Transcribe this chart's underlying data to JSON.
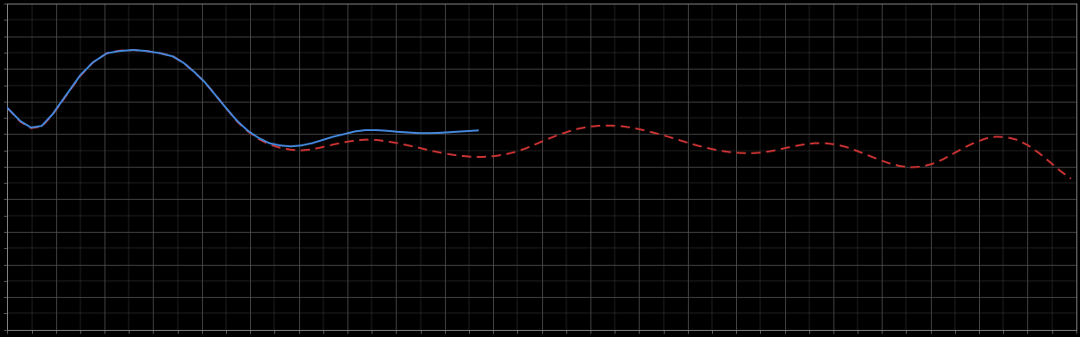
{
  "background_color": "#000000",
  "plot_bg_color": "#000000",
  "grid_color": "#505050",
  "blue_line_color": "#4488dd",
  "red_line_color": "#cc3333",
  "xlim": [
    0,
    1
  ],
  "ylim": [
    0,
    1
  ],
  "figsize": [
    12.09,
    3.78
  ],
  "dpi": 100,
  "blue_x": [
    0.0,
    0.012,
    0.022,
    0.032,
    0.042,
    0.055,
    0.068,
    0.08,
    0.093,
    0.105,
    0.118,
    0.13,
    0.143,
    0.155,
    0.165,
    0.175,
    0.185,
    0.195,
    0.205,
    0.215,
    0.225,
    0.235,
    0.245,
    0.255,
    0.265,
    0.275,
    0.285,
    0.295,
    0.305,
    0.315,
    0.325,
    0.335,
    0.345,
    0.355,
    0.365,
    0.375,
    0.385,
    0.395,
    0.405,
    0.415,
    0.425,
    0.435,
    0.44
  ],
  "blue_y": [
    0.68,
    0.64,
    0.62,
    0.625,
    0.66,
    0.72,
    0.78,
    0.82,
    0.848,
    0.855,
    0.858,
    0.855,
    0.848,
    0.838,
    0.818,
    0.79,
    0.758,
    0.718,
    0.678,
    0.64,
    0.61,
    0.588,
    0.572,
    0.565,
    0.562,
    0.565,
    0.572,
    0.582,
    0.592,
    0.6,
    0.608,
    0.612,
    0.612,
    0.61,
    0.607,
    0.605,
    0.603,
    0.603,
    0.604,
    0.606,
    0.608,
    0.61,
    0.611
  ],
  "red_x": [
    0.0,
    0.012,
    0.022,
    0.032,
    0.042,
    0.055,
    0.068,
    0.08,
    0.093,
    0.105,
    0.118,
    0.13,
    0.143,
    0.155,
    0.165,
    0.175,
    0.185,
    0.195,
    0.205,
    0.215,
    0.225,
    0.235,
    0.245,
    0.255,
    0.265,
    0.275,
    0.285,
    0.295,
    0.305,
    0.315,
    0.325,
    0.335,
    0.345,
    0.355,
    0.365,
    0.375,
    0.385,
    0.395,
    0.405,
    0.415,
    0.425,
    0.435,
    0.445,
    0.455,
    0.465,
    0.475,
    0.485,
    0.495,
    0.505,
    0.515,
    0.525,
    0.535,
    0.545,
    0.555,
    0.565,
    0.575,
    0.585,
    0.595,
    0.605,
    0.615,
    0.625,
    0.635,
    0.645,
    0.655,
    0.665,
    0.675,
    0.685,
    0.695,
    0.705,
    0.715,
    0.725,
    0.735,
    0.745,
    0.755,
    0.765,
    0.775,
    0.785,
    0.795,
    0.805,
    0.815,
    0.825,
    0.835,
    0.845,
    0.855,
    0.865,
    0.875,
    0.885,
    0.895,
    0.905,
    0.915,
    0.925,
    0.935,
    0.945,
    0.955,
    0.965,
    0.975,
    0.985,
    0.995
  ],
  "red_y": [
    0.68,
    0.638,
    0.618,
    0.623,
    0.658,
    0.718,
    0.778,
    0.82,
    0.848,
    0.856,
    0.858,
    0.855,
    0.848,
    0.838,
    0.818,
    0.79,
    0.758,
    0.718,
    0.678,
    0.638,
    0.608,
    0.585,
    0.568,
    0.558,
    0.552,
    0.55,
    0.553,
    0.56,
    0.568,
    0.575,
    0.58,
    0.583,
    0.582,
    0.578,
    0.572,
    0.565,
    0.558,
    0.55,
    0.543,
    0.537,
    0.533,
    0.53,
    0.53,
    0.532,
    0.537,
    0.545,
    0.556,
    0.57,
    0.584,
    0.597,
    0.608,
    0.617,
    0.623,
    0.626,
    0.626,
    0.624,
    0.619,
    0.612,
    0.604,
    0.595,
    0.585,
    0.575,
    0.565,
    0.557,
    0.55,
    0.545,
    0.542,
    0.541,
    0.543,
    0.548,
    0.555,
    0.562,
    0.568,
    0.572,
    0.572,
    0.568,
    0.56,
    0.548,
    0.535,
    0.522,
    0.51,
    0.502,
    0.498,
    0.5,
    0.508,
    0.522,
    0.54,
    0.558,
    0.574,
    0.586,
    0.592,
    0.59,
    0.582,
    0.565,
    0.542,
    0.515,
    0.487,
    0.463
  ]
}
